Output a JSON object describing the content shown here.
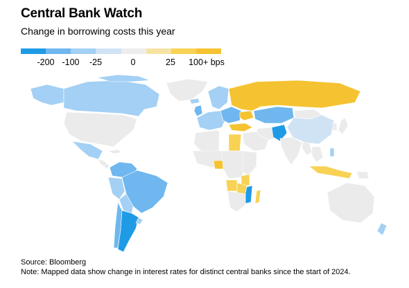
{
  "header": {
    "title": "Central Bank Watch",
    "subtitle": "Change in borrowing costs this year"
  },
  "legend": {
    "bins": [
      {
        "color": "#1f9be6"
      },
      {
        "color": "#6fb7ee"
      },
      {
        "color": "#a3d0f4"
      },
      {
        "color": "#cfe3f5"
      },
      {
        "color": "#ededed"
      },
      {
        "color": "#f6e3a3"
      },
      {
        "color": "#f7d255"
      },
      {
        "color": "#f5c331"
      }
    ],
    "labels": [
      "-200",
      "-100",
      "-25",
      "0",
      "25",
      "100+ bps"
    ]
  },
  "colors": {
    "neg_large": "#1f9be6",
    "neg_med": "#6fb7ee",
    "neg_small": "#a3d0f4",
    "neg_tiny": "#cfe3f5",
    "zero": "#ebebeb",
    "no_data": "#ffffff",
    "pos_small": "#f6e3a3",
    "pos_med": "#f7d255",
    "pos_large": "#f5c331"
  },
  "footer": {
    "source": "Source: Bloomberg",
    "note": "Note: Mapped data show change in interest rates for distinct central banks since the start of 2024."
  }
}
